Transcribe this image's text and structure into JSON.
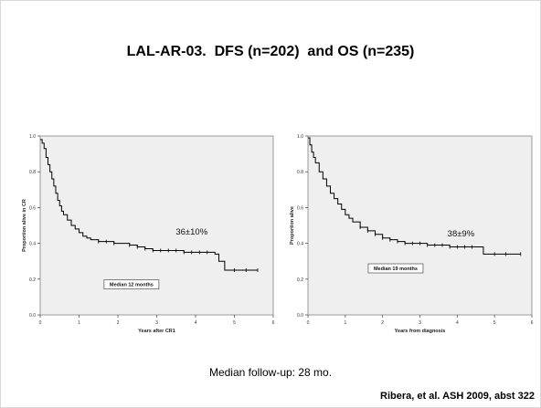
{
  "slide": {
    "title": "LAL-AR-03.  DFS (n=202)  and OS (n=235)",
    "footnote": "Median follow-up: 28 mo.",
    "citation": "Ribera, et al. ASH 2009, abst 322"
  },
  "colors": {
    "plot_bg": "#efefef",
    "curve": "#000000",
    "frame": "#999999"
  },
  "chart_data": [
    {
      "type": "line",
      "title": "",
      "xlabel": "Years after CR1",
      "ylabel": "Proportion alive in CR",
      "xlim": [
        0,
        6
      ],
      "ylim": [
        0.0,
        1.0
      ],
      "x_ticks": [
        "0",
        "1",
        "2",
        "3",
        "4",
        "5",
        "6"
      ],
      "y_ticks": [
        "0.0",
        "0.2",
        "0.4",
        "0.6",
        "0.8",
        "1.0"
      ],
      "annotation": "36±10%",
      "annotation_at": [
        3.9,
        0.45
      ],
      "box_label": "Median 12 months",
      "box_at": [
        2.35,
        0.16
      ],
      "grid": false,
      "series": [
        {
          "x": [
            0,
            0.05,
            0.1,
            0.15,
            0.2,
            0.25,
            0.3,
            0.35,
            0.4,
            0.45,
            0.5,
            0.55,
            0.6,
            0.7,
            0.8,
            0.9,
            1.0,
            1.1,
            1.2,
            1.3,
            1.5,
            1.7,
            1.9,
            2.1,
            2.3,
            2.5,
            2.7,
            2.9,
            3.1,
            3.3,
            3.5,
            3.7,
            3.9,
            4.1,
            4.3,
            4.5,
            4.6,
            4.75,
            5.0,
            5.3,
            5.6
          ],
          "y": [
            0.98,
            0.96,
            0.93,
            0.88,
            0.84,
            0.8,
            0.76,
            0.72,
            0.68,
            0.64,
            0.61,
            0.58,
            0.56,
            0.53,
            0.5,
            0.48,
            0.46,
            0.44,
            0.43,
            0.42,
            0.41,
            0.41,
            0.4,
            0.4,
            0.39,
            0.38,
            0.37,
            0.36,
            0.36,
            0.36,
            0.36,
            0.35,
            0.35,
            0.35,
            0.35,
            0.34,
            0.3,
            0.25,
            0.25,
            0.25,
            0.25
          ],
          "censor_x": [
            1.5,
            1.7,
            1.9,
            2.3,
            2.5,
            2.7,
            2.9,
            3.1,
            3.3,
            3.5,
            3.7,
            3.9,
            4.1,
            4.3,
            5.0,
            5.3,
            5.6
          ]
        }
      ]
    },
    {
      "type": "line",
      "title": "",
      "xlabel": "Years from diagnosis",
      "ylabel": "Proportion alive",
      "xlim": [
        0,
        6
      ],
      "ylim": [
        0.0,
        1.0
      ],
      "x_ticks": [
        "0",
        "1",
        "2",
        "3",
        "4",
        "5",
        "6"
      ],
      "y_ticks": [
        "0.0",
        "0.2",
        "0.4",
        "0.6",
        "0.8",
        "1.0"
      ],
      "annotation": "38±9%",
      "annotation_at": [
        4.1,
        0.44
      ],
      "box_label": "Median 19 months",
      "box_at": [
        2.35,
        0.25
      ],
      "grid": false,
      "series": [
        {
          "x": [
            0,
            0.05,
            0.1,
            0.15,
            0.2,
            0.3,
            0.4,
            0.5,
            0.6,
            0.7,
            0.8,
            0.9,
            1.0,
            1.1,
            1.2,
            1.4,
            1.6,
            1.8,
            2.0,
            2.2,
            2.4,
            2.6,
            2.8,
            3.0,
            3.2,
            3.4,
            3.6,
            3.8,
            4.0,
            4.2,
            4.4,
            4.6,
            4.7,
            5.0,
            5.3,
            5.7
          ],
          "y": [
            0.99,
            0.95,
            0.91,
            0.88,
            0.85,
            0.8,
            0.76,
            0.72,
            0.68,
            0.65,
            0.62,
            0.59,
            0.56,
            0.54,
            0.52,
            0.49,
            0.47,
            0.45,
            0.43,
            0.42,
            0.41,
            0.4,
            0.4,
            0.4,
            0.39,
            0.39,
            0.39,
            0.38,
            0.38,
            0.38,
            0.38,
            0.38,
            0.34,
            0.34,
            0.34,
            0.34
          ],
          "censor_x": [
            1.4,
            1.6,
            1.8,
            2.0,
            2.2,
            2.4,
            2.6,
            2.8,
            3.0,
            3.2,
            3.4,
            3.6,
            3.8,
            4.0,
            4.2,
            4.4,
            5.0,
            5.3,
            5.7
          ]
        }
      ]
    }
  ]
}
